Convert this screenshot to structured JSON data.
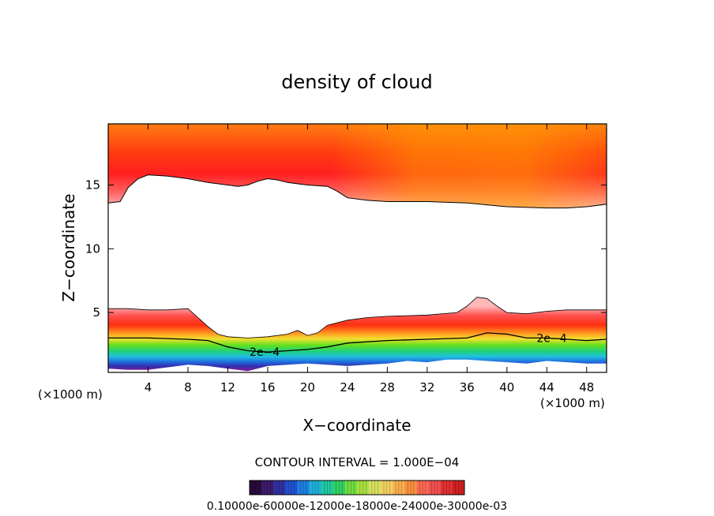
{
  "chart_data": {
    "type": "heatmap",
    "title": "density of cloud",
    "xlabel": "X−coordinate",
    "ylabel": "Z−coordinate",
    "x_unit_left": "(×1000 m)",
    "x_unit_right": "(×1000 m)",
    "xlim": [
      0,
      50
    ],
    "ylim": [
      0.3,
      19.8
    ],
    "x_ticks": [
      4,
      8,
      12,
      16,
      20,
      24,
      28,
      32,
      36,
      40,
      44,
      48
    ],
    "x_tick_labels": [
      "4",
      "8",
      "12",
      "16",
      "20",
      "24",
      "28",
      "32",
      "36",
      "40",
      "44",
      "48"
    ],
    "y_ticks": [
      5,
      10,
      15
    ],
    "y_tick_labels": [
      "5",
      "10",
      "15"
    ],
    "contour_interval_label": "CONTOUR INTERVAL = 1.000E−04",
    "contour_labels": [
      {
        "text": "2e−4",
        "x": 15.7,
        "z": 1.9
      },
      {
        "text": "2e−4",
        "x": 44.5,
        "z": 3.0
      }
    ],
    "upper_layer": {
      "top_z": 19.8,
      "boundary": [
        [
          0,
          13.6
        ],
        [
          1.2,
          13.7
        ],
        [
          2,
          14.8
        ],
        [
          3,
          15.5
        ],
        [
          4,
          15.8
        ],
        [
          6,
          15.7
        ],
        [
          8,
          15.5
        ],
        [
          10,
          15.2
        ],
        [
          12,
          15.0
        ],
        [
          13,
          14.9
        ],
        [
          14,
          15.0
        ],
        [
          15,
          15.3
        ],
        [
          16,
          15.5
        ],
        [
          17,
          15.4
        ],
        [
          18,
          15.2
        ],
        [
          20,
          15.0
        ],
        [
          22,
          14.9
        ],
        [
          23,
          14.5
        ],
        [
          24,
          14.0
        ],
        [
          26,
          13.8
        ],
        [
          28,
          13.7
        ],
        [
          32,
          13.7
        ],
        [
          36,
          13.6
        ],
        [
          40,
          13.3
        ],
        [
          44,
          13.2
        ],
        [
          46,
          13.2
        ],
        [
          48,
          13.3
        ],
        [
          50,
          13.5
        ]
      ]
    },
    "lower_layer": {
      "top": [
        [
          0,
          5.3
        ],
        [
          2,
          5.3
        ],
        [
          4,
          5.2
        ],
        [
          6,
          5.2
        ],
        [
          8,
          5.3
        ],
        [
          9,
          4.6
        ],
        [
          10,
          3.9
        ],
        [
          11,
          3.3
        ],
        [
          12,
          3.1
        ],
        [
          14,
          3.0
        ],
        [
          16,
          3.1
        ],
        [
          18,
          3.3
        ],
        [
          19,
          3.6
        ],
        [
          20,
          3.2
        ],
        [
          21,
          3.4
        ],
        [
          22,
          4.0
        ],
        [
          24,
          4.4
        ],
        [
          26,
          4.6
        ],
        [
          28,
          4.7
        ],
        [
          32,
          4.8
        ],
        [
          35,
          5.0
        ],
        [
          36,
          5.5
        ],
        [
          37,
          6.2
        ],
        [
          38,
          6.1
        ],
        [
          39,
          5.5
        ],
        [
          40,
          5.0
        ],
        [
          42,
          4.9
        ],
        [
          44,
          5.1
        ],
        [
          46,
          5.2
        ],
        [
          48,
          5.2
        ],
        [
          50,
          5.2
        ]
      ],
      "bottom": [
        [
          0,
          0.6
        ],
        [
          2,
          0.5
        ],
        [
          4,
          0.5
        ],
        [
          6,
          0.7
        ],
        [
          8,
          0.9
        ],
        [
          10,
          0.8
        ],
        [
          12,
          0.6
        ],
        [
          14,
          0.4
        ],
        [
          16,
          0.8
        ],
        [
          18,
          0.9
        ],
        [
          20,
          1.0
        ],
        [
          22,
          0.9
        ],
        [
          24,
          0.8
        ],
        [
          26,
          0.9
        ],
        [
          28,
          1.0
        ],
        [
          30,
          1.2
        ],
        [
          32,
          1.1
        ],
        [
          34,
          1.3
        ],
        [
          36,
          1.3
        ],
        [
          38,
          1.2
        ],
        [
          40,
          1.1
        ],
        [
          42,
          1.0
        ],
        [
          44,
          1.2
        ],
        [
          46,
          1.1
        ],
        [
          48,
          1.0
        ],
        [
          50,
          1.0
        ]
      ],
      "contour_2e4": [
        [
          0,
          3.0
        ],
        [
          4,
          3.0
        ],
        [
          8,
          2.9
        ],
        [
          10,
          2.8
        ],
        [
          12,
          2.3
        ],
        [
          14,
          2.0
        ],
        [
          16,
          1.9
        ],
        [
          18,
          2.0
        ],
        [
          20,
          2.1
        ],
        [
          22,
          2.3
        ],
        [
          24,
          2.6
        ],
        [
          28,
          2.8
        ],
        [
          32,
          2.9
        ],
        [
          36,
          3.0
        ],
        [
          38,
          3.4
        ],
        [
          40,
          3.3
        ],
        [
          42,
          3.0
        ],
        [
          44,
          3.0
        ],
        [
          46,
          2.9
        ],
        [
          48,
          2.8
        ],
        [
          50,
          2.9
        ]
      ]
    },
    "colorbar": {
      "labels": "0.10000e-60000e-12000e-18000e-24000e-30000e-03",
      "colors": [
        "#2a0a3a",
        "#3a1a6a",
        "#3030a0",
        "#2050d0",
        "#1e80e0",
        "#20b0d8",
        "#20c8a0",
        "#30d060",
        "#70dc40",
        "#a8e040",
        "#d8e060",
        "#f0d060",
        "#f8b050",
        "#f89040",
        "#f86a50",
        "#f05050",
        "#e03030",
        "#d02020"
      ]
    }
  }
}
